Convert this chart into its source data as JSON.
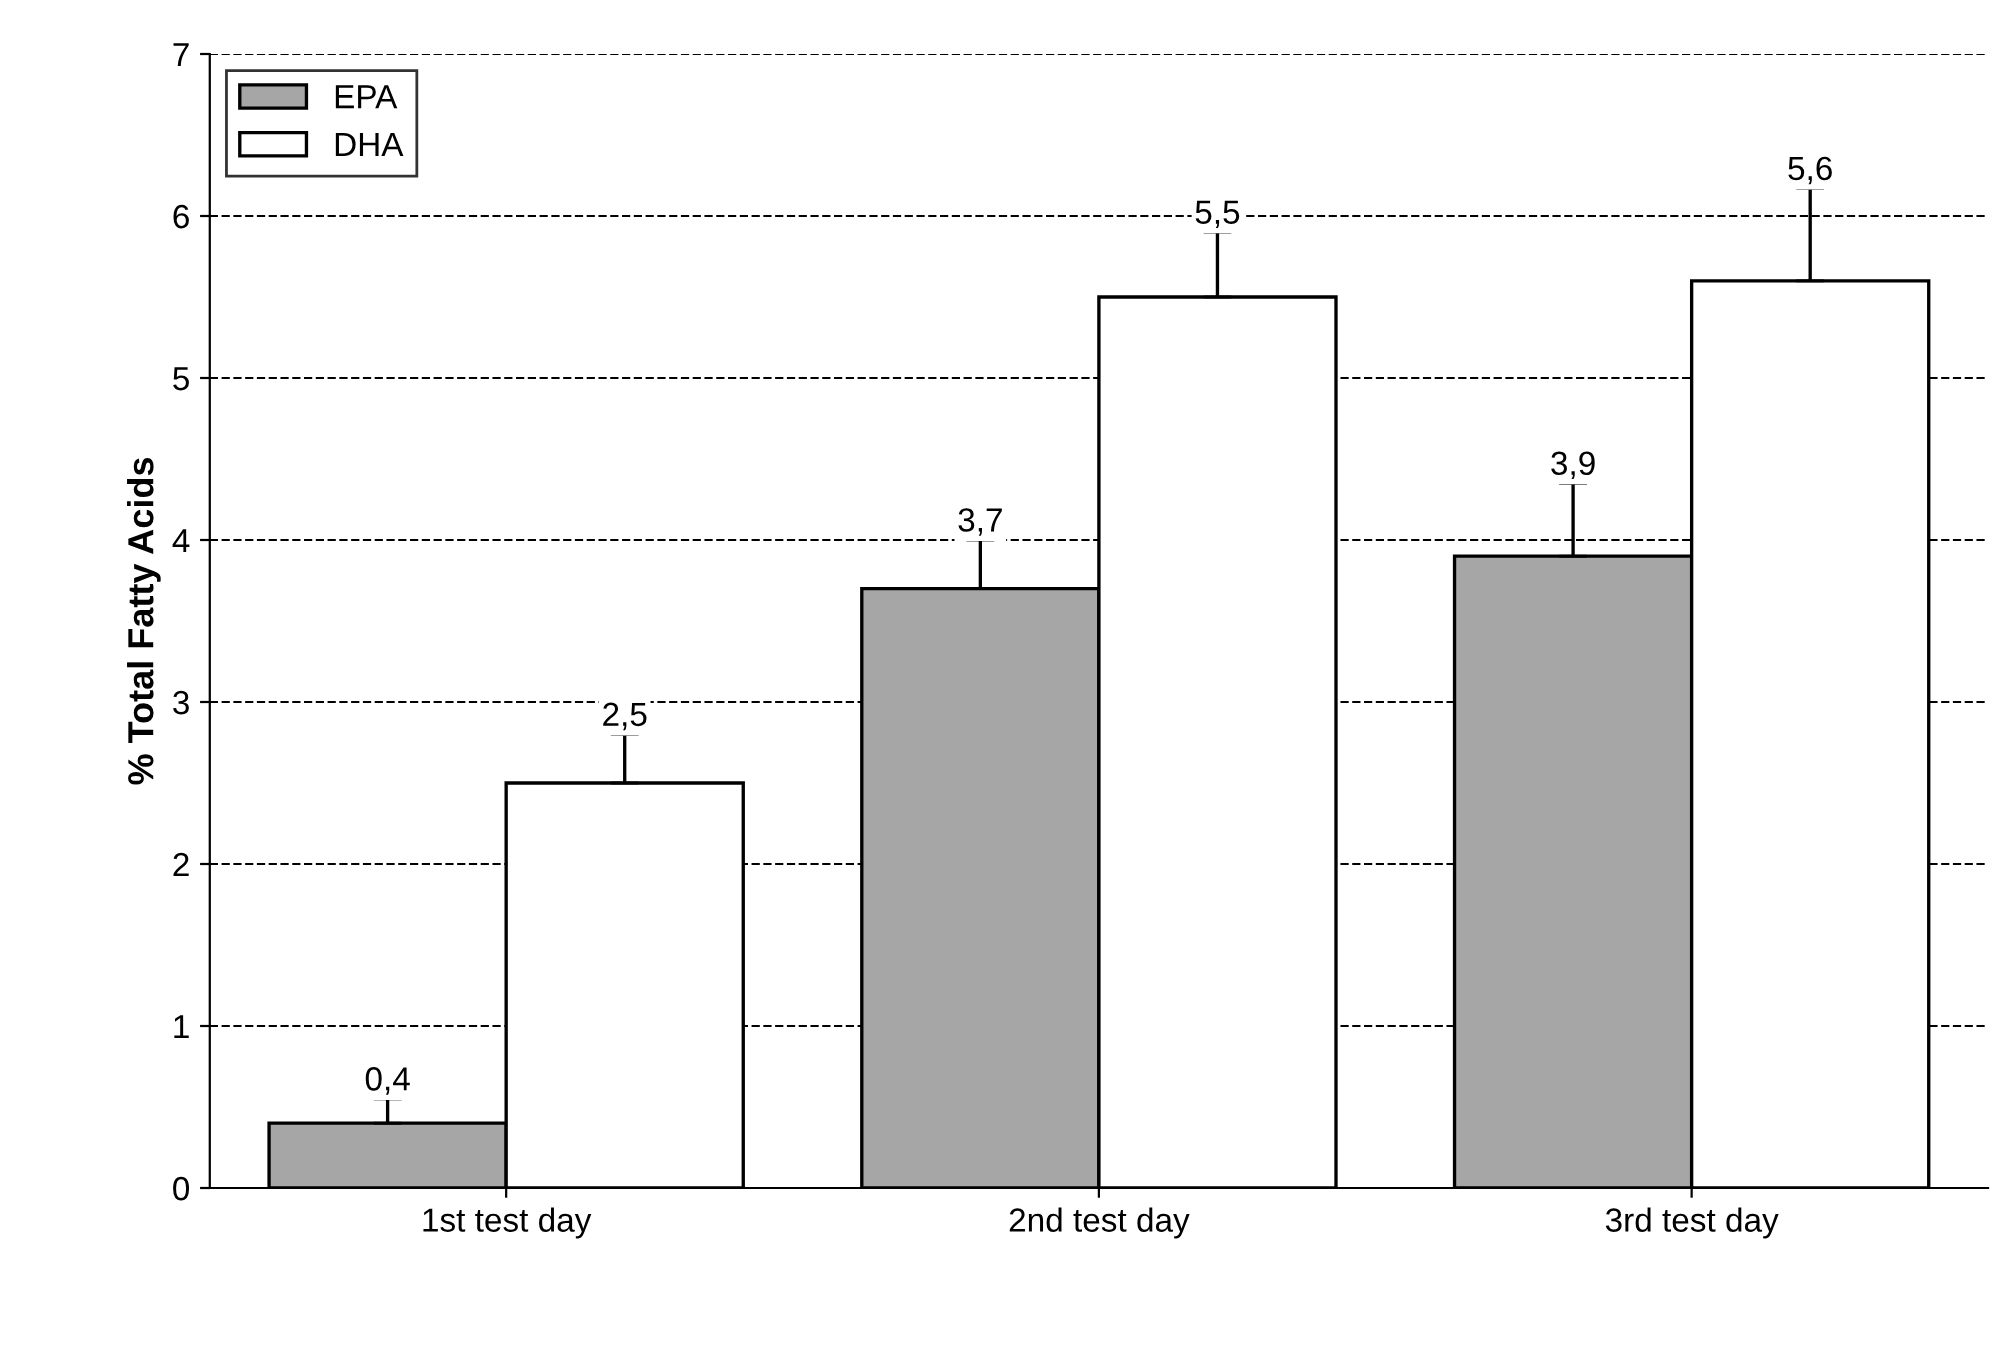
{
  "chart_data": {
    "type": "bar",
    "ylabel": "% Total Fatty Acids",
    "categories": [
      "1st test day",
      "2nd test day",
      "3rd test day"
    ],
    "series": [
      {
        "name": "EPA",
        "color": "#a6a6a6",
        "values": [
          0.4,
          3.7,
          3.9
        ],
        "errors": [
          [
            0.4,
            0.55
          ],
          [
            3.7,
            4.0
          ],
          [
            3.9,
            4.35
          ]
        ],
        "value_labels": [
          "0,4",
          "3,7",
          "3,9"
        ]
      },
      {
        "name": "DHA",
        "color": "#ffffff",
        "values": [
          2.5,
          5.5,
          5.6
        ],
        "errors": [
          [
            2.5,
            2.8
          ],
          [
            5.5,
            5.9
          ],
          [
            5.6,
            6.17
          ]
        ],
        "value_labels": [
          "2,5",
          "5,5",
          "5,6"
        ]
      }
    ],
    "ylim": [
      0,
      7
    ],
    "yticks": [
      0,
      1,
      2,
      3,
      4,
      5,
      6,
      7
    ],
    "grid": "y",
    "legend": "top left"
  }
}
